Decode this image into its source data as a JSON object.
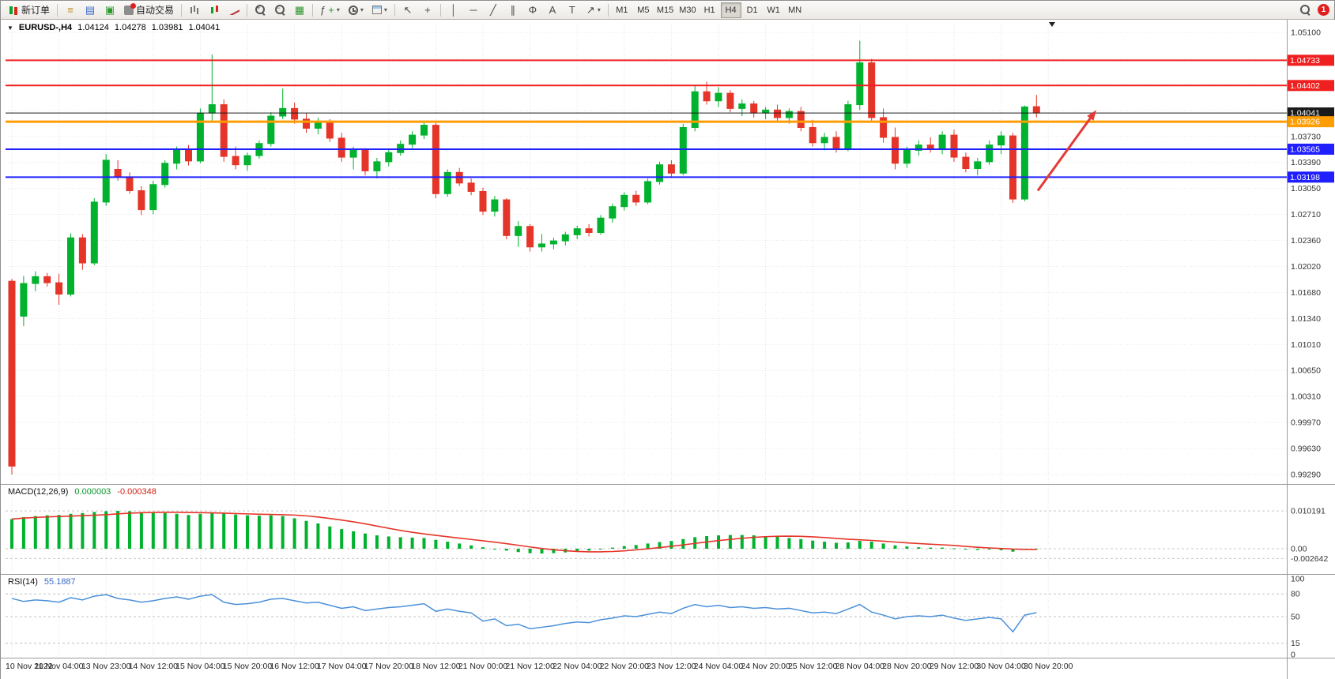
{
  "toolbar": {
    "new_order_label": "新订单",
    "auto_trading_label": "自动交易",
    "timeframes": [
      "M1",
      "M5",
      "M15",
      "M30",
      "H1",
      "H4",
      "D1",
      "W1",
      "MN"
    ],
    "active_timeframe": "H4",
    "notification_count": "1",
    "icons": {
      "menu": "≡",
      "navigator": "▤",
      "terminal": "▣",
      "tile": "▦",
      "vline": "│",
      "hline": "─",
      "trend": "╱",
      "channel": "∥",
      "fibo": "Φ",
      "text": "A",
      "label": "T",
      "arrows": "↗",
      "cursor": "↖",
      "cross": "+",
      "dropdown": "▾",
      "indicator": "ƒ",
      "plus": "+",
      "zoom_in": "+",
      "zoom_out": "−",
      "caret_down": "▼"
    }
  },
  "chart": {
    "symbol_period": "EURUSD-,H4",
    "open": "1.04124",
    "high": "1.04278",
    "low": "1.03981",
    "close": "1.04041"
  },
  "chart_data": {
    "type": "candlestick",
    "title": "EURUSD-,H4",
    "price_range": {
      "top": 1.051,
      "bottom": 0.9929
    },
    "up_color": "#00b22d",
    "down_color": "#e53528",
    "candles": [
      [
        1.0183,
        1.0186,
        0.9929,
        0.994
      ],
      [
        1.0137,
        1.019,
        1.0124,
        1.018
      ],
      [
        1.018,
        1.0196,
        1.017,
        1.0189
      ],
      [
        1.0189,
        1.0194,
        1.0176,
        1.0181
      ],
      [
        1.0181,
        1.0193,
        1.0152,
        1.0166
      ],
      [
        1.0166,
        1.0246,
        1.0163,
        1.024
      ],
      [
        1.024,
        1.0245,
        1.0198,
        1.0207
      ],
      [
        1.0207,
        1.0292,
        1.0204,
        1.0287
      ],
      [
        1.0287,
        1.035,
        1.0282,
        1.0342
      ],
      [
        1.033,
        1.0342,
        1.0315,
        1.032
      ],
      [
        1.032,
        1.0326,
        1.0298,
        1.0302
      ],
      [
        1.0302,
        1.0308,
        1.027,
        1.0277
      ],
      [
        1.0277,
        1.0315,
        1.0271,
        1.031
      ],
      [
        1.031,
        1.0342,
        1.0306,
        1.0338
      ],
      [
        1.0338,
        1.036,
        1.033,
        1.0355
      ],
      [
        1.0355,
        1.0362,
        1.0335,
        1.0341
      ],
      [
        1.0341,
        1.041,
        1.0338,
        1.0404
      ],
      [
        1.0404,
        1.0481,
        1.0392,
        1.0415
      ],
      [
        1.0415,
        1.0422,
        1.034,
        1.0347
      ],
      [
        1.0347,
        1.036,
        1.033,
        1.0336
      ],
      [
        1.0336,
        1.0352,
        1.0328,
        1.0348
      ],
      [
        1.0348,
        1.0368,
        1.0344,
        1.0364
      ],
      [
        1.0364,
        1.0405,
        1.036,
        1.04
      ],
      [
        1.04,
        1.0436,
        1.0396,
        1.041
      ],
      [
        1.041,
        1.0418,
        1.039,
        1.0396
      ],
      [
        1.0396,
        1.0404,
        1.0378,
        1.0384
      ],
      [
        1.0384,
        1.0398,
        1.0376,
        1.0393
      ],
      [
        1.0393,
        1.0396,
        1.0366,
        1.0371
      ],
      [
        1.0371,
        1.0378,
        1.034,
        1.0346
      ],
      [
        1.0346,
        1.036,
        1.033,
        1.0355
      ],
      [
        1.0355,
        1.0358,
        1.0322,
        1.0328
      ],
      [
        1.0328,
        1.0345,
        1.0318,
        1.034
      ],
      [
        1.034,
        1.0356,
        1.0334,
        1.0352
      ],
      [
        1.0352,
        1.0368,
        1.0348,
        1.0363
      ],
      [
        1.0363,
        1.038,
        1.0358,
        1.0375
      ],
      [
        1.0375,
        1.0394,
        1.037,
        1.0388
      ],
      [
        1.0388,
        1.0391,
        1.0292,
        1.0298
      ],
      [
        1.0298,
        1.033,
        1.0294,
        1.0326
      ],
      [
        1.0326,
        1.0332,
        1.0308,
        1.0312
      ],
      [
        1.0312,
        1.0318,
        1.0296,
        1.0301
      ],
      [
        1.0301,
        1.0306,
        1.027,
        1.0275
      ],
      [
        1.0275,
        1.0295,
        1.0268,
        1.029
      ],
      [
        1.029,
        1.0292,
        1.0238,
        1.0243
      ],
      [
        1.0243,
        1.0262,
        1.0228,
        1.0255
      ],
      [
        1.0255,
        1.0258,
        1.0222,
        1.0228
      ],
      [
        1.0228,
        1.0245,
        1.0222,
        1.0232
      ],
      [
        1.0232,
        1.024,
        1.0225,
        1.0236
      ],
      [
        1.0236,
        1.0248,
        1.023,
        1.0244
      ],
      [
        1.0244,
        1.0256,
        1.0238,
        1.0252
      ],
      [
        1.0252,
        1.0258,
        1.0242,
        1.0247
      ],
      [
        1.0247,
        1.027,
        1.0244,
        1.0266
      ],
      [
        1.0266,
        1.0285,
        1.026,
        1.0281
      ],
      [
        1.0281,
        1.03,
        1.0276,
        1.0296
      ],
      [
        1.0296,
        1.0302,
        1.0282,
        1.0287
      ],
      [
        1.0287,
        1.0318,
        1.0284,
        1.0314
      ],
      [
        1.0314,
        1.034,
        1.031,
        1.0336
      ],
      [
        1.0336,
        1.0342,
        1.032,
        1.0325
      ],
      [
        1.0325,
        1.039,
        1.0322,
        1.0385
      ],
      [
        1.0385,
        1.044,
        1.038,
        1.0432
      ],
      [
        1.0432,
        1.0445,
        1.0415,
        1.042
      ],
      [
        1.042,
        1.0438,
        1.0412,
        1.043
      ],
      [
        1.043,
        1.0434,
        1.0405,
        1.041
      ],
      [
        1.041,
        1.0422,
        1.04,
        1.0416
      ],
      [
        1.0416,
        1.042,
        1.0398,
        1.0404
      ],
      [
        1.0404,
        1.0412,
        1.0396,
        1.0408
      ],
      [
        1.0408,
        1.0415,
        1.0392,
        1.0398
      ],
      [
        1.0398,
        1.041,
        1.039,
        1.0406
      ],
      [
        1.0406,
        1.0412,
        1.038,
        1.0385
      ],
      [
        1.0385,
        1.0395,
        1.036,
        1.0365
      ],
      [
        1.0365,
        1.0378,
        1.0355,
        1.0372
      ],
      [
        1.0372,
        1.038,
        1.0352,
        1.0357
      ],
      [
        1.0357,
        1.042,
        1.0354,
        1.0415
      ],
      [
        1.0415,
        1.0499,
        1.0408,
        1.047
      ],
      [
        1.047,
        1.0475,
        1.0392,
        1.0398
      ],
      [
        1.0398,
        1.041,
        1.0365,
        1.0372
      ],
      [
        1.0372,
        1.0385,
        1.033,
        1.0338
      ],
      [
        1.0338,
        1.036,
        1.0332,
        1.0355
      ],
      [
        1.0355,
        1.0368,
        1.0348,
        1.0362
      ],
      [
        1.0362,
        1.0372,
        1.0352,
        1.0358
      ],
      [
        1.0358,
        1.038,
        1.035,
        1.0375
      ],
      [
        1.0375,
        1.0382,
        1.034,
        1.0346
      ],
      [
        1.0346,
        1.0352,
        1.0326,
        1.0331
      ],
      [
        1.0331,
        1.0345,
        1.0322,
        1.034
      ],
      [
        1.034,
        1.0368,
        1.0336,
        1.0362
      ],
      [
        1.0362,
        1.038,
        1.035,
        1.0374
      ],
      [
        1.0374,
        1.0378,
        1.0286,
        1.0291
      ],
      [
        1.0291,
        1.0414,
        1.0288,
        1.0412
      ],
      [
        1.04124,
        1.04278,
        1.03981,
        1.04041
      ]
    ],
    "hlines": [
      {
        "price": 1.04733,
        "label": "1.04733",
        "color": "#f02020",
        "width": 2
      },
      {
        "price": 1.04402,
        "label": "1.04402",
        "color": "#f02020",
        "width": 2
      },
      {
        "price": 1.04041,
        "label": "1.04041",
        "color": "#1a1a1a",
        "width": 1,
        "current": true
      },
      {
        "price": 1.03926,
        "label": "1.03926",
        "color": "#ff9c00",
        "width": 3
      },
      {
        "price": 1.03565,
        "label": "1.03565",
        "color": "#1f1fff",
        "width": 2
      },
      {
        "price": 1.03198,
        "label": "1.03198",
        "color": "#1f1fff",
        "width": 2
      }
    ],
    "y_axis_labels": [
      "1.05100",
      "",
      "",
      "",
      "1.03730",
      "1.03390",
      "1.03050",
      "1.02710",
      "1.02360",
      "1.02020",
      "1.01680",
      "1.01340",
      "1.01010",
      "1.00650",
      "1.00310",
      "0.99970",
      "0.99630",
      "0.99290"
    ],
    "x_axis_labels": [
      "10 Nov 2022",
      "11 Nov 04:00",
      "13 Nov 23:00",
      "14 Nov 12:00",
      "15 Nov 04:00",
      "15 Nov 20:00",
      "16 Nov 12:00",
      "17 Nov 04:00",
      "17 Nov 20:00",
      "18 Nov 12:00",
      "21 Nov 00:00",
      "21 Nov 12:00",
      "22 Nov 04:00",
      "22 Nov 20:00",
      "23 Nov 12:00",
      "24 Nov 04:00",
      "24 Nov 20:00",
      "25 Nov 12:00",
      "28 Nov 04:00",
      "28 Nov 20:00",
      "29 Nov 12:00",
      "30 Nov 04:00",
      "30 Nov 20:00"
    ],
    "trend_arrow": {
      "color": "#e53935",
      "from_price": 1.0302,
      "to_price": 1.0408
    },
    "macd": {
      "label": "MACD(12,26,9)",
      "main_value": "0.000003",
      "signal_value": "-0.000348",
      "axis_labels": [
        "0.010191",
        "0.00",
        "-0.002642"
      ],
      "axis_values": [
        0.010191,
        0,
        -0.002642
      ],
      "histogram_color": "#00b22d",
      "signal_color": "#e53528",
      "values": [
        0.008,
        0.0085,
        0.0088,
        0.009,
        0.0091,
        0.0094,
        0.0096,
        0.0099,
        0.0101,
        0.0102,
        0.0101,
        0.0099,
        0.0097,
        0.0096,
        0.0094,
        0.0091,
        0.0094,
        0.0096,
        0.0095,
        0.0092,
        0.009,
        0.0089,
        0.009,
        0.0088,
        0.0082,
        0.0075,
        0.0068,
        0.006,
        0.0053,
        0.0047,
        0.0041,
        0.0036,
        0.0033,
        0.0031,
        0.003,
        0.0029,
        0.0024,
        0.0019,
        0.0014,
        0.0009,
        0.0004,
        -0.0001,
        -0.0005,
        -0.0009,
        -0.0012,
        -0.0013,
        -0.0012,
        -0.001,
        -0.0008,
        -0.0005,
        -0.0001,
        0.0003,
        0.0007,
        0.001,
        0.0014,
        0.0018,
        0.0021,
        0.0026,
        0.0031,
        0.0034,
        0.0036,
        0.0037,
        0.0037,
        0.0036,
        0.0034,
        0.0032,
        0.0029,
        0.0026,
        0.0022,
        0.0019,
        0.0016,
        0.0017,
        0.0021,
        0.0019,
        0.0014,
        0.0009,
        0.0006,
        0.0004,
        0.0003,
        0.0003,
        0.0001,
        -0.0002,
        -0.0003,
        -0.0002,
        -0.0004,
        -0.0008,
        -0.0003,
        3e-06
      ]
    },
    "rsi": {
      "label": "RSI(14)",
      "value": "55.1887",
      "axis_labels": [
        "100",
        "80",
        "50",
        "15",
        "0"
      ],
      "axis_values": [
        100,
        80,
        50,
        15,
        0
      ],
      "levels": [
        80,
        50,
        15
      ],
      "color": "#4a90d9",
      "values": [
        74,
        70,
        72,
        71,
        69,
        75,
        72,
        77,
        79,
        74,
        72,
        69,
        71,
        74,
        76,
        73,
        77,
        79,
        69,
        66,
        67,
        69,
        73,
        74,
        71,
        68,
        69,
        65,
        61,
        63,
        58,
        60,
        62,
        63,
        65,
        67,
        57,
        60,
        57,
        55,
        44,
        47,
        38,
        40,
        34,
        36,
        38,
        41,
        43,
        42,
        46,
        48,
        51,
        50,
        53,
        56,
        54,
        61,
        66,
        63,
        65,
        62,
        63,
        61,
        62,
        60,
        61,
        58,
        55,
        56,
        54,
        60,
        66,
        56,
        52,
        47,
        50,
        51,
        50,
        52,
        48,
        45,
        47,
        49,
        47,
        30,
        52,
        55.19
      ]
    }
  }
}
